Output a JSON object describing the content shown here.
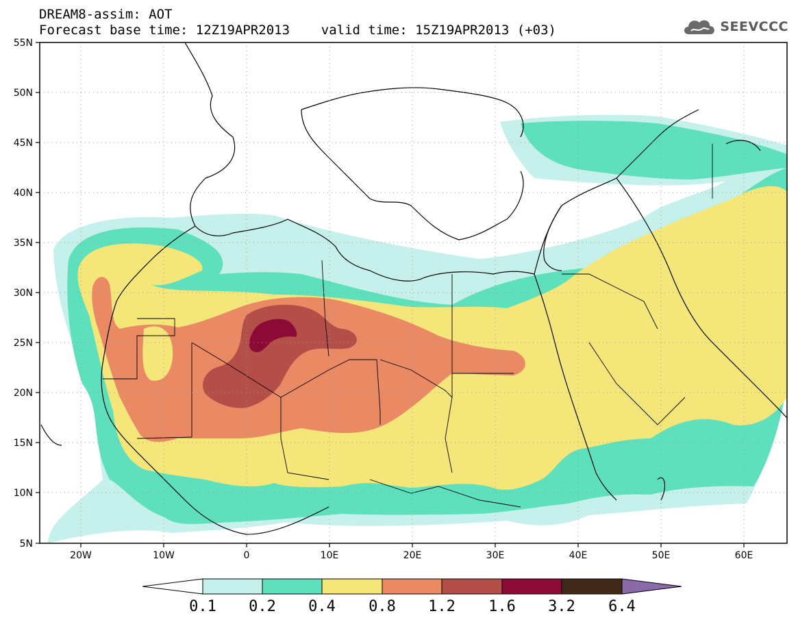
{
  "header": {
    "title_line1": "DREAM8-assim: AOT",
    "title_line2": "Forecast base time: 12Z19APR2013    valid time: 15Z19APR2013 (+03)",
    "logo_text": "SEEVCCC"
  },
  "map": {
    "lon_range": [
      -25,
      65
    ],
    "lat_range": [
      5,
      55
    ],
    "lat_labels": [
      "55N",
      "50N",
      "45N",
      "40N",
      "35N",
      "30N",
      "25N",
      "20N",
      "15N",
      "10N",
      "5N"
    ],
    "lon_labels": [
      "20W",
      "10W",
      "0",
      "10E",
      "20E",
      "30E",
      "40E",
      "50E",
      "60E"
    ],
    "grid": "dotted"
  },
  "legend": {
    "labels": [
      "0.1",
      "0.2",
      "0.4",
      "0.8",
      "1.2",
      "1.6",
      "3.2",
      "6.4"
    ],
    "colors": [
      "#ffffff",
      "#c6f0ec",
      "#5ee0bd",
      "#f5e67a",
      "#e98a65",
      "#b44e48",
      "#8c0a36",
      "#41291a",
      "#8b6aa8"
    ]
  }
}
